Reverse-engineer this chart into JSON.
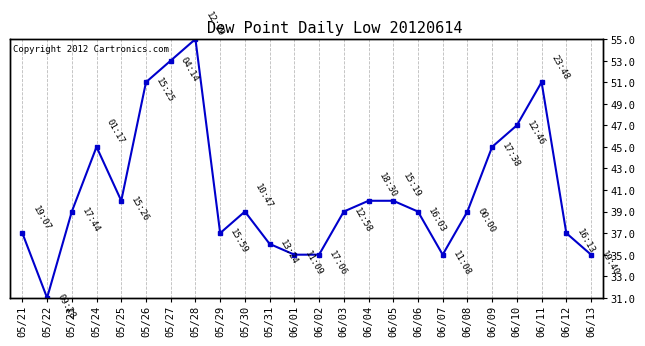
{
  "title": "Dew Point Daily Low 20120614",
  "copyright": "Copyright 2012 Cartronics.com",
  "dates": [
    "05/21",
    "05/22",
    "05/23",
    "05/24",
    "05/25",
    "05/26",
    "05/27",
    "05/28",
    "05/29",
    "05/30",
    "05/31",
    "06/01",
    "06/02",
    "06/03",
    "06/04",
    "06/05",
    "06/06",
    "06/07",
    "06/08",
    "06/09",
    "06/10",
    "06/11",
    "06/12",
    "06/13"
  ],
  "values": [
    37.0,
    31.0,
    39.0,
    45.0,
    40.0,
    51.0,
    53.0,
    55.0,
    37.0,
    39.0,
    36.0,
    35.0,
    35.0,
    39.0,
    40.0,
    40.0,
    39.0,
    35.0,
    39.0,
    45.0,
    47.0,
    51.0,
    37.0,
    35.0
  ],
  "labels": [
    "19:07",
    "09:28",
    "17:44",
    "01:17",
    "15:26",
    "15:25",
    "04:14",
    "12:19",
    "15:59",
    "10:47",
    "13:24",
    "11:09",
    "17:06",
    "12:58",
    "18:30",
    "15:19",
    "16:03",
    "11:08",
    "00:00",
    "17:38",
    "12:46",
    "23:48",
    "16:13",
    "19:40"
  ],
  "ylim": [
    31.0,
    55.0
  ],
  "yticks": [
    31.0,
    33.0,
    35.0,
    37.0,
    39.0,
    41.0,
    43.0,
    45.0,
    47.0,
    49.0,
    51.0,
    53.0,
    55.0
  ],
  "line_color": "#0000CC",
  "marker_color": "#0000CC",
  "bg_color": "#FFFFFF",
  "grid_color": "#BBBBBB",
  "title_fontsize": 11,
  "label_fontsize": 6.5,
  "tick_fontsize": 7.5,
  "copyright_fontsize": 6.5
}
